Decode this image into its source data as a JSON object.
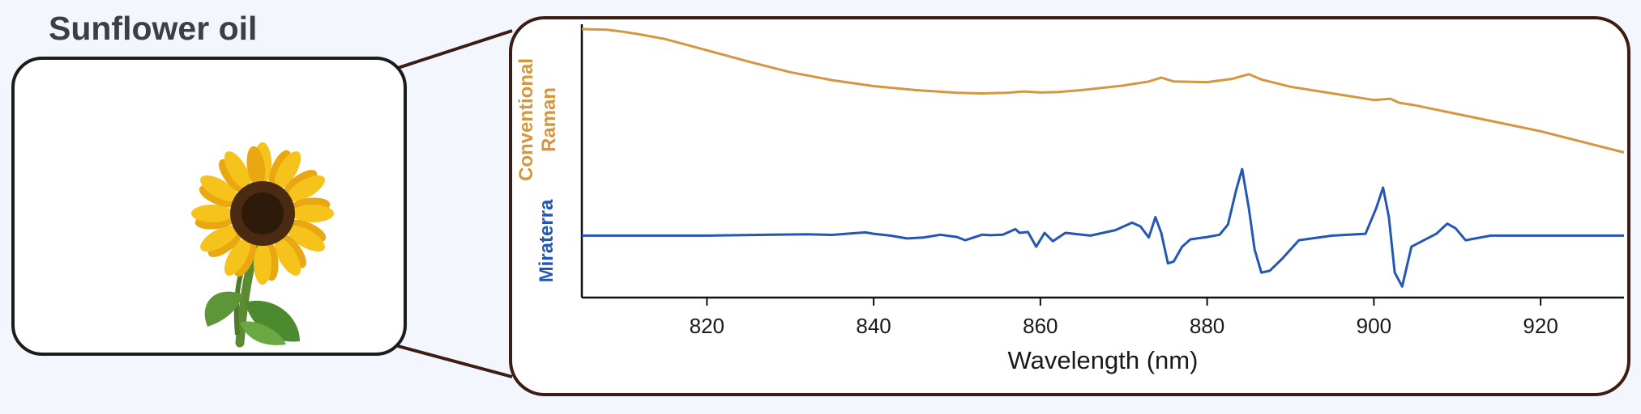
{
  "page_title": "Sunflower oil",
  "photo": {
    "subject": "sunflower-icon"
  },
  "colors": {
    "conventional": "#d4973f",
    "miraterra": "#2457b5",
    "frame": "#3b1d14",
    "title": "#3b3f47"
  },
  "chart_data": {
    "type": "line",
    "title": "",
    "xlabel": "Wavelength (nm)",
    "ylabel": "",
    "xlim": [
      805,
      930
    ],
    "xticks": [
      820,
      840,
      860,
      880,
      900,
      920
    ],
    "series": [
      {
        "name": "Conventional Raman",
        "lines": [
          "Conventional",
          "Raman"
        ],
        "x": [
          805,
          808,
          810,
          812,
          815,
          820,
          825,
          830,
          835,
          840,
          845,
          850,
          853,
          856,
          858,
          860,
          862,
          865,
          870,
          873,
          874.5,
          876,
          880,
          883,
          885,
          886.5,
          890,
          895,
          900,
          902,
          903,
          905,
          910,
          915,
          920,
          925,
          930
        ],
        "y": [
          1.0,
          0.995,
          0.98,
          0.96,
          0.925,
          0.84,
          0.755,
          0.675,
          0.615,
          0.57,
          0.54,
          0.52,
          0.515,
          0.52,
          0.53,
          0.522,
          0.525,
          0.54,
          0.575,
          0.605,
          0.635,
          0.605,
          0.6,
          0.625,
          0.66,
          0.62,
          0.565,
          0.515,
          0.465,
          0.475,
          0.445,
          0.425,
          0.36,
          0.295,
          0.23,
          0.15,
          0.07
        ],
        "ylim": [
          0,
          1
        ]
      },
      {
        "name": "Miraterra",
        "lines": [
          "Miraterra"
        ],
        "x": [
          805,
          820,
          828,
          832,
          835,
          839,
          840,
          842,
          844,
          846,
          848,
          850,
          851,
          853,
          854,
          855.5,
          857,
          857.5,
          858.5,
          859.5,
          860.5,
          861.5,
          863,
          866,
          869,
          871,
          872,
          873,
          873.8,
          874.5,
          875.3,
          876,
          877,
          878,
          880,
          881.5,
          882.5,
          883.5,
          884.2,
          885,
          885.7,
          886.5,
          887.5,
          889,
          891,
          895,
          899,
          900.3,
          901.1,
          901.8,
          902.5,
          903.4,
          904.5,
          906,
          907.5,
          908.8,
          909.8,
          911,
          914,
          920,
          925,
          930
        ],
        "y": [
          0,
          0,
          0.01,
          0.015,
          0.008,
          0.035,
          0.02,
          0.0,
          -0.03,
          -0.02,
          0.01,
          -0.015,
          -0.05,
          0.01,
          0.005,
          0.01,
          0.07,
          0.03,
          0.04,
          -0.12,
          0.03,
          -0.06,
          0.03,
          0.0,
          0.06,
          0.14,
          0.1,
          -0.02,
          0.2,
          0.03,
          -0.3,
          -0.28,
          -0.12,
          -0.04,
          -0.015,
          0.01,
          0.12,
          0.5,
          0.72,
          0.3,
          -0.15,
          -0.4,
          -0.38,
          -0.25,
          -0.05,
          0.0,
          0.02,
          0.3,
          0.52,
          0.2,
          -0.4,
          -0.55,
          -0.12,
          -0.05,
          0.02,
          0.13,
          0.08,
          -0.05,
          0.0,
          0.0,
          0.0,
          0.0
        ],
        "ylim": [
          -0.6,
          0.8
        ]
      }
    ],
    "grid": false,
    "legend": "left-vertical-labels"
  }
}
